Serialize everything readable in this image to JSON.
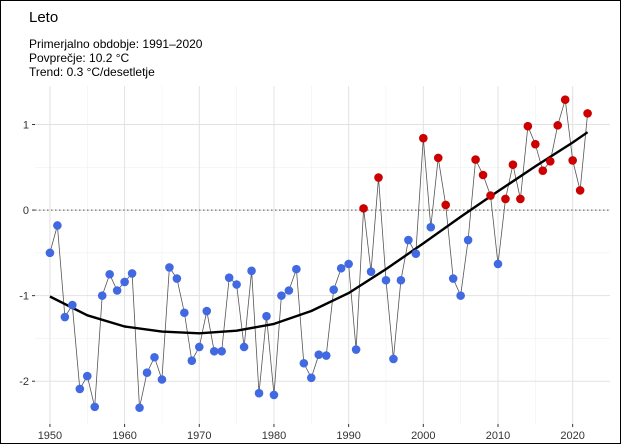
{
  "chart_data": {
    "type": "scatter",
    "title": "Leto",
    "subtitle": [
      "Primerjalno obdobje: 1991–2020",
      "Povprečje: 10.2 °C",
      "Trend: 0.3 °C/desetletje"
    ],
    "xlabel": "",
    "ylabel": "",
    "xlim": [
      1948,
      2025
    ],
    "ylim": [
      -2.5,
      1.45
    ],
    "x_ticks": [
      1950,
      1960,
      1970,
      1980,
      1990,
      2000,
      2010,
      2020
    ],
    "y_ticks": [
      -2,
      -1,
      0,
      1
    ],
    "grid": true,
    "reference_line": 0,
    "colors": {
      "negative": "#4169e1",
      "positive": "#cc0000",
      "line": "#555555",
      "trend": "#000000"
    },
    "series": [
      {
        "x": [
          1950,
          1951,
          1952,
          1953,
          1954,
          1955,
          1956,
          1957,
          1958,
          1959,
          1960,
          1961,
          1962,
          1963,
          1964,
          1965,
          1966,
          1967,
          1968,
          1969,
          1970,
          1971,
          1972,
          1973,
          1974,
          1975,
          1976,
          1977,
          1978,
          1979,
          1980,
          1981,
          1982,
          1983,
          1984,
          1985,
          1986,
          1987,
          1988,
          1989,
          1990,
          1991,
          1992,
          1993,
          1994,
          1995,
          1996,
          1997,
          1998,
          1999,
          2000,
          2001,
          2002,
          2003,
          2004,
          2005,
          2006,
          2007,
          2008,
          2009,
          2010,
          2011,
          2012,
          2013,
          2014,
          2015,
          2016,
          2017,
          2018,
          2019,
          2020,
          2021,
          2022
        ],
        "y": [
          -0.5,
          -0.18,
          -1.25,
          -1.11,
          -2.09,
          -1.94,
          -2.3,
          -1.0,
          -0.75,
          -0.94,
          -0.84,
          -0.74,
          -2.31,
          -1.9,
          -1.72,
          -1.98,
          -0.67,
          -0.8,
          -1.2,
          -1.76,
          -1.6,
          -1.18,
          -1.65,
          -1.65,
          -0.79,
          -0.87,
          -1.6,
          -0.71,
          -2.14,
          -1.24,
          -2.16,
          -1.0,
          -0.94,
          -0.69,
          -1.79,
          -1.96,
          -1.69,
          -1.7,
          -0.93,
          -0.68,
          -0.63,
          -1.63,
          0.02,
          -0.72,
          0.38,
          -0.82,
          -1.74,
          -0.82,
          -0.35,
          -0.51,
          0.84,
          -0.2,
          0.61,
          0.06,
          -0.8,
          -1.0,
          -0.35,
          0.59,
          0.41,
          0.17,
          -0.63,
          0.13,
          0.53,
          0.13,
          0.98,
          0.77,
          0.46,
          0.57,
          0.99,
          1.29,
          0.58,
          0.23,
          1.13
        ]
      }
    ],
    "trend": {
      "x": [
        1950,
        1955,
        1960,
        1965,
        1970,
        1975,
        1980,
        1985,
        1990,
        1995,
        2000,
        2005,
        2010,
        2015,
        2020,
        2022
      ],
      "y": [
        -1.01,
        -1.23,
        -1.36,
        -1.42,
        -1.44,
        -1.41,
        -1.33,
        -1.18,
        -0.97,
        -0.69,
        -0.39,
        -0.08,
        0.22,
        0.51,
        0.79,
        0.91
      ]
    }
  }
}
